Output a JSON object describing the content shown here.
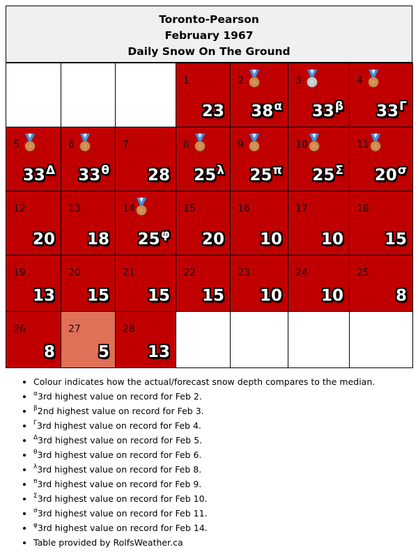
{
  "header": {
    "station": "Toronto-Pearson",
    "period": "February 1967",
    "metric": "Daily Snow On The Ground"
  },
  "colors": {
    "above_median": "#c00000",
    "near_median": "#e07058",
    "empty": "#ffffff",
    "header_bg": "#f0f0f0"
  },
  "days": [
    {
      "day": "1",
      "value": "23",
      "sup": "",
      "medal": ""
    },
    {
      "day": "2",
      "value": "38",
      "sup": "α",
      "medal": "bronze"
    },
    {
      "day": "3",
      "value": "33",
      "sup": "β",
      "medal": "silver"
    },
    {
      "day": "4",
      "value": "33",
      "sup": "Γ",
      "medal": "bronze"
    },
    {
      "day": "5",
      "value": "33",
      "sup": "Δ",
      "medal": "bronze"
    },
    {
      "day": "6",
      "value": "33",
      "sup": "θ",
      "medal": "bronze"
    },
    {
      "day": "7",
      "value": "28",
      "sup": "",
      "medal": ""
    },
    {
      "day": "8",
      "value": "25",
      "sup": "λ",
      "medal": "bronze"
    },
    {
      "day": "9",
      "value": "25",
      "sup": "π",
      "medal": "bronze"
    },
    {
      "day": "10",
      "value": "25",
      "sup": "Σ",
      "medal": "bronze"
    },
    {
      "day": "11",
      "value": "20",
      "sup": "σ",
      "medal": "bronze"
    },
    {
      "day": "12",
      "value": "20",
      "sup": "",
      "medal": ""
    },
    {
      "day": "13",
      "value": "18",
      "sup": "",
      "medal": ""
    },
    {
      "day": "14",
      "value": "25",
      "sup": "φ",
      "medal": "bronze"
    },
    {
      "day": "15",
      "value": "20",
      "sup": "",
      "medal": ""
    },
    {
      "day": "16",
      "value": "10",
      "sup": "",
      "medal": ""
    },
    {
      "day": "17",
      "value": "10",
      "sup": "",
      "medal": ""
    },
    {
      "day": "18",
      "value": "15",
      "sup": "",
      "medal": ""
    },
    {
      "day": "19",
      "value": "13",
      "sup": "",
      "medal": ""
    },
    {
      "day": "20",
      "value": "15",
      "sup": "",
      "medal": ""
    },
    {
      "day": "21",
      "value": "15",
      "sup": "",
      "medal": ""
    },
    {
      "day": "22",
      "value": "15",
      "sup": "",
      "medal": ""
    },
    {
      "day": "23",
      "value": "10",
      "sup": "",
      "medal": ""
    },
    {
      "day": "24",
      "value": "10",
      "sup": "",
      "medal": ""
    },
    {
      "day": "25",
      "value": "8",
      "sup": "",
      "medal": ""
    },
    {
      "day": "26",
      "value": "8",
      "sup": "",
      "medal": ""
    },
    {
      "day": "27",
      "value": "5",
      "sup": "",
      "medal": ""
    },
    {
      "day": "28",
      "value": "13",
      "sup": "",
      "medal": ""
    }
  ],
  "notes": [
    {
      "sup": "",
      "text": "Colour indicates how the actual/forecast snow depth compares to the median."
    },
    {
      "sup": "α",
      "text": "3rd highest value on record for Feb 2."
    },
    {
      "sup": "β",
      "text": "2nd highest value on record for Feb 3."
    },
    {
      "sup": "Γ",
      "text": "3rd highest value on record for Feb 4."
    },
    {
      "sup": "Δ",
      "text": "3rd highest value on record for Feb 5."
    },
    {
      "sup": "θ",
      "text": "3rd highest value on record for Feb 6."
    },
    {
      "sup": "λ",
      "text": "3rd highest value on record for Feb 8."
    },
    {
      "sup": "π",
      "text": "3rd highest value on record for Feb 9."
    },
    {
      "sup": "Σ",
      "text": "3rd highest value on record for Feb 10."
    },
    {
      "sup": "σ",
      "text": "3rd highest value on record for Feb 11."
    },
    {
      "sup": "φ",
      "text": "3rd highest value on record for Feb 14."
    },
    {
      "sup": "",
      "text": "Table provided by RolfsWeather.ca"
    }
  ]
}
